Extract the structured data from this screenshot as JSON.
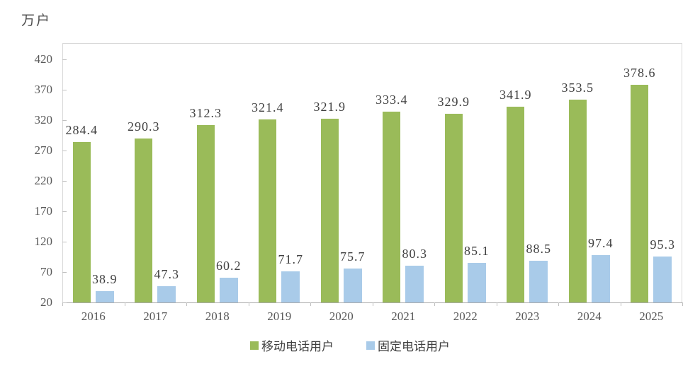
{
  "unit_label": "万户",
  "chart_data": {
    "type": "bar",
    "title": "",
    "ylabel": "万户",
    "xlabel": "",
    "categories": [
      "2016",
      "2017",
      "2018",
      "2019",
      "2020",
      "2021",
      "2022",
      "2023",
      "2024",
      "2025"
    ],
    "series": [
      {
        "name": "移动电话用户",
        "color": "#9abb59",
        "values": [
          284.4,
          290.3,
          312.3,
          321.4,
          321.9,
          333.4,
          329.9,
          341.9,
          353.5,
          378.6
        ]
      },
      {
        "name": "固定电话用户",
        "color": "#a9cbe9",
        "values": [
          38.9,
          47.3,
          60.2,
          71.7,
          75.7,
          80.3,
          85.1,
          88.5,
          97.4,
          95.3
        ]
      }
    ],
    "y_axis": {
      "min": 20,
      "max": 450,
      "tick_interval": 50,
      "tick_values": [
        420,
        370,
        320,
        270,
        220,
        170,
        120,
        70,
        20
      ]
    },
    "legend_position": "bottom",
    "grid": false,
    "data_labels": true
  },
  "colors": {
    "mobile_series": "#9abb59",
    "fixed_series": "#a9cbe9",
    "axis_text": "#595959",
    "data_label_text": "#404040",
    "plot_border": "#d9d9d9",
    "axis_line": "#a9a9a9",
    "background": "#ffffff"
  }
}
